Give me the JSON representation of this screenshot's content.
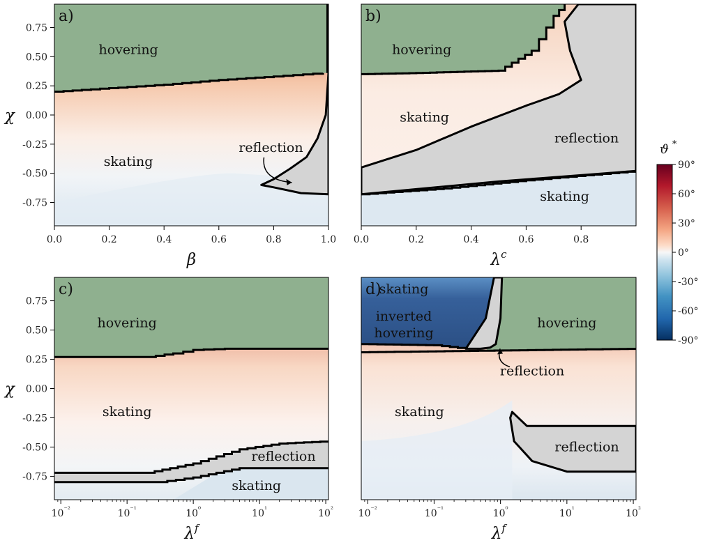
{
  "chart_data": [
    {
      "panel": "a)",
      "type": "heatmap",
      "xlabel": "β",
      "ylabel": "χ",
      "xlim": [
        0.0,
        1.0
      ],
      "ylim": [
        -0.95,
        0.95
      ],
      "x_scale": "linear",
      "xticks": [
        0.0,
        0.2,
        0.4,
        0.6,
        0.8,
        1.0
      ],
      "xtick_labels": [
        "0.0",
        "0.2",
        "0.4",
        "0.6",
        "0.8",
        "1.0"
      ],
      "yticks": [
        0.75,
        0.5,
        0.25,
        0.0,
        -0.25,
        -0.5,
        -0.75
      ],
      "ytick_labels": [
        "0.75",
        "0.50",
        "0.25",
        "0.00",
        "-0.25",
        "-0.50",
        "-0.75"
      ],
      "hover_boundary": [
        [
          0.0,
          0.2
        ],
        [
          0.2,
          0.23
        ],
        [
          0.4,
          0.26
        ],
        [
          0.6,
          0.3
        ],
        [
          0.8,
          0.33
        ],
        [
          0.98,
          0.36
        ]
      ],
      "regions": [
        {
          "name": "hovering",
          "x": 0.27,
          "y": 0.56
        },
        {
          "name": "skating",
          "x": 0.27,
          "y": -0.4
        },
        {
          "name": "reflection",
          "x": 0.79,
          "y": -0.28
        }
      ],
      "reflection_region": [
        [
          1.0,
          0.36
        ],
        [
          0.99,
          0.0
        ],
        [
          0.96,
          -0.2
        ],
        [
          0.92,
          -0.36
        ],
        [
          0.86,
          -0.46
        ],
        [
          0.8,
          -0.55
        ],
        [
          0.755,
          -0.6
        ],
        [
          0.8,
          -0.62
        ],
        [
          0.9,
          -0.67
        ],
        [
          1.0,
          -0.68
        ]
      ]
    },
    {
      "panel": "b)",
      "type": "heatmap",
      "xlabel": "λc",
      "ylabel": "",
      "xlim": [
        0.0,
        1.0
      ],
      "ylim": [
        -0.95,
        0.95
      ],
      "x_scale": "linear",
      "xticks": [
        0.0,
        0.2,
        0.4,
        0.6,
        0.8
      ],
      "xtick_labels": [
        "0.0",
        "0.2",
        "0.4",
        "0.6",
        "0.8"
      ],
      "hover_boundary": [
        [
          0.0,
          0.35
        ],
        [
          0.2,
          0.36
        ],
        [
          0.5,
          0.38
        ],
        [
          0.62,
          0.55
        ],
        [
          0.7,
          0.85
        ],
        [
          0.74,
          0.95
        ]
      ],
      "regions": [
        {
          "name": "hovering",
          "x": 0.22,
          "y": 0.56
        },
        {
          "name": "skating",
          "x": 0.23,
          "y": -0.02
        },
        {
          "name": "reflection",
          "x": 0.82,
          "y": -0.2
        },
        {
          "name": "skating",
          "x": 0.74,
          "y": -0.7
        }
      ],
      "reflection_region": [
        [
          0.79,
          0.95
        ],
        [
          0.74,
          0.8
        ],
        [
          0.76,
          0.55
        ],
        [
          0.8,
          0.3
        ],
        [
          0.72,
          0.18
        ],
        [
          0.6,
          0.08
        ],
        [
          0.4,
          -0.1
        ],
        [
          0.2,
          -0.3
        ],
        [
          0.0,
          -0.45
        ],
        [
          0.0,
          -0.68
        ],
        [
          0.5,
          -0.57
        ],
        [
          1.0,
          -0.48
        ],
        [
          1.0,
          0.95
        ]
      ],
      "lower_boundary": [
        [
          0.0,
          -0.68
        ],
        [
          0.3,
          -0.63
        ],
        [
          0.6,
          -0.56
        ],
        [
          1.0,
          -0.48
        ]
      ]
    },
    {
      "panel": "c)",
      "type": "heatmap",
      "xlabel": "λf",
      "ylabel": "χ",
      "xlim": [
        0.008,
        110
      ],
      "ylim": [
        -0.95,
        0.95
      ],
      "x_scale": "log",
      "xticks": [
        0.01,
        0.1,
        1,
        10,
        100
      ],
      "xtick_labels": [
        "10⁻²",
        "10⁻¹",
        "10⁰",
        "10¹",
        "10²"
      ],
      "yticks": [
        0.75,
        0.5,
        0.25,
        0.0,
        -0.25,
        -0.5,
        -0.75
      ],
      "ytick_labels": [
        "0.75",
        "0.50",
        "0.25",
        "0.00",
        "-0.25",
        "-0.50",
        "-0.75"
      ],
      "hover_boundary": [
        [
          0.008,
          0.27
        ],
        [
          0.2,
          0.27
        ],
        [
          0.5,
          0.3
        ],
        [
          1,
          0.33
        ],
        [
          3,
          0.34
        ],
        [
          110,
          0.34
        ]
      ],
      "regions": [
        {
          "name": "hovering",
          "x": 0.1,
          "y": 0.56
        },
        {
          "name": "skating",
          "x": 0.1,
          "y": -0.2
        },
        {
          "name": "reflection",
          "x": 23,
          "y": -0.58
        },
        {
          "name": "skating",
          "x": 9,
          "y": -0.83
        }
      ],
      "reflection_band_upper": [
        [
          0.008,
          -0.72
        ],
        [
          0.2,
          -0.72
        ],
        [
          1,
          -0.64
        ],
        [
          5,
          -0.52
        ],
        [
          20,
          -0.47
        ],
        [
          110,
          -0.45
        ]
      ],
      "reflection_band_lower": [
        [
          0.008,
          -0.8
        ],
        [
          0.3,
          -0.8
        ],
        [
          1,
          -0.76
        ],
        [
          5,
          -0.68
        ],
        [
          110,
          -0.68
        ]
      ]
    },
    {
      "panel": "d)",
      "type": "heatmap",
      "xlabel": "λf",
      "ylabel": "",
      "xlim": [
        0.008,
        110
      ],
      "ylim": [
        -0.95,
        0.95
      ],
      "x_scale": "log",
      "xticks": [
        0.01,
        0.1,
        1,
        10,
        100
      ],
      "xtick_labels": [
        "10⁻²",
        "10⁻¹",
        "10⁰",
        "10¹",
        "10²"
      ],
      "hover_boundary": [
        [
          0.008,
          0.31
        ],
        [
          110,
          0.34
        ]
      ],
      "inverted_hover_boundary": [
        [
          0.008,
          0.38
        ],
        [
          0.1,
          0.37
        ],
        [
          0.3,
          0.34
        ]
      ],
      "regions": [
        {
          "name": "skating",
          "x": 0.035,
          "y": 0.85
        },
        {
          "name": "inverted\nhovering",
          "x": 0.035,
          "y": 0.55
        },
        {
          "name": "hovering",
          "x": 10,
          "y": 0.56
        },
        {
          "name": "reflection",
          "x": 3,
          "y": 0.15
        },
        {
          "name": "skating",
          "x": 0.06,
          "y": -0.2
        },
        {
          "name": "reflection",
          "x": 20,
          "y": -0.5
        }
      ],
      "reflection_region_top": [
        [
          0.3,
          0.34
        ],
        [
          0.6,
          0.6
        ],
        [
          0.8,
          0.95
        ],
        [
          1.05,
          0.95
        ],
        [
          1.0,
          0.6
        ],
        [
          0.85,
          0.38
        ],
        [
          0.7,
          0.35
        ],
        [
          0.5,
          0.34
        ]
      ],
      "reflection_region_right": [
        [
          1.5,
          -0.2
        ],
        [
          2.5,
          -0.32
        ],
        [
          110,
          -0.32
        ],
        [
          110,
          -0.71
        ],
        [
          10,
          -0.71
        ],
        [
          3,
          -0.62
        ],
        [
          1.6,
          -0.45
        ],
        [
          1.4,
          -0.25
        ]
      ]
    }
  ],
  "panels": [
    {
      "label": "a)",
      "xlabel": "β",
      "ylabel": "χ",
      "regions": [
        "hovering",
        "skating",
        "reflection"
      ]
    },
    {
      "label": "b)",
      "xlabel": "λ",
      "xlabel_sup": "c",
      "regions": [
        "hovering",
        "skating",
        "reflection",
        "skating"
      ]
    },
    {
      "label": "c)",
      "xlabel": "λ",
      "xlabel_sup": "f",
      "ylabel": "χ",
      "regions": [
        "hovering",
        "skating",
        "reflection",
        "skating"
      ]
    },
    {
      "label": "d)",
      "xlabel": "λ",
      "xlabel_sup": "f",
      "regions": [
        "skating",
        "inverted",
        "hovering",
        "hovering",
        "reflection",
        "skating",
        "reflection"
      ]
    }
  ],
  "colorbar": {
    "title": "ϑ",
    "title_sup": "*",
    "ticks": [
      "90°",
      "60°",
      "30°",
      "0°",
      "-30°",
      "-60°",
      "-90°"
    ],
    "range": [
      -90,
      90
    ],
    "colormap": "RdBu_r"
  },
  "colors": {
    "hover": "#8fb08f",
    "reflection": "#d4d4d4",
    "boundary": "#000000"
  }
}
